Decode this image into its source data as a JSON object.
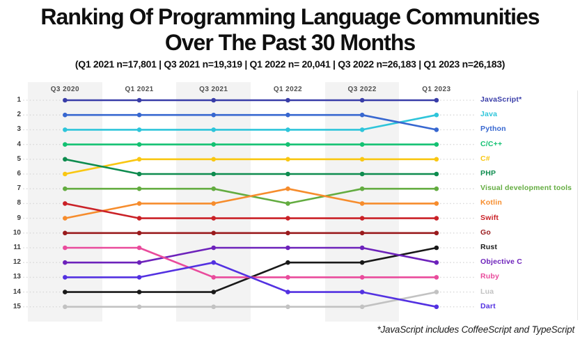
{
  "title": {
    "line1": "Ranking Of Programming Language Communities",
    "line2": "Over The Past 30 Months"
  },
  "subtitle": "(Q1 2021 n=17,801 | Q3 2021 n=19,319 | Q1 2022 n= 20,041 | Q3 2022 n=26,183 | Q1 2023 n=26,183)",
  "footnote": "*JavaScript includes CoffeeScript and TypeScript",
  "chart_data": {
    "type": "line",
    "subtype": "bump-ranking-chart",
    "x_labels": [
      "Q3 2020",
      "Q1 2021",
      "Q3 2021",
      "Q1 2022",
      "Q3 2022",
      "Q1 2023"
    ],
    "rank_labels": [
      "1",
      "2",
      "3",
      "4",
      "5",
      "6",
      "7",
      "8",
      "9",
      "10",
      "11",
      "12",
      "13",
      "14",
      "15"
    ],
    "rank_range": [
      1,
      15
    ],
    "legend_position": "right",
    "grid": {
      "alternating_column_bands": true,
      "first_band_shaded": true
    },
    "series": [
      {
        "name": "JavaScript*",
        "color": "#393da8",
        "ranks": [
          1,
          1,
          1,
          1,
          1,
          1
        ]
      },
      {
        "name": "Java",
        "color": "#2ec5da",
        "ranks": [
          3,
          3,
          3,
          3,
          3,
          2
        ]
      },
      {
        "name": "Python",
        "color": "#3767d0",
        "ranks": [
          2,
          2,
          2,
          2,
          2,
          3
        ]
      },
      {
        "name": "C/C++",
        "color": "#13c172",
        "ranks": [
          4,
          4,
          4,
          4,
          4,
          4
        ]
      },
      {
        "name": "C#",
        "color": "#f9c712",
        "ranks": [
          6,
          5,
          5,
          5,
          5,
          5
        ]
      },
      {
        "name": "PHP",
        "color": "#0e8c4f",
        "ranks": [
          5,
          6,
          6,
          6,
          6,
          6
        ]
      },
      {
        "name": "Visual development tools",
        "color": "#63ac40",
        "ranks": [
          7,
          7,
          7,
          8,
          7,
          7
        ]
      },
      {
        "name": "Kotlin",
        "color": "#f68c2c",
        "ranks": [
          9,
          8,
          8,
          7,
          8,
          8
        ]
      },
      {
        "name": "Swift",
        "color": "#ca2127",
        "ranks": [
          8,
          9,
          9,
          9,
          9,
          9
        ]
      },
      {
        "name": "Go",
        "color": "#9a1b1d",
        "ranks": [
          10,
          10,
          10,
          10,
          10,
          10
        ]
      },
      {
        "name": "Rust",
        "color": "#191919",
        "ranks": [
          14,
          14,
          14,
          12,
          12,
          11
        ]
      },
      {
        "name": "Objective C",
        "color": "#6d22bb",
        "ranks": [
          12,
          12,
          11,
          11,
          11,
          12
        ]
      },
      {
        "name": "Ruby",
        "color": "#e94b9c",
        "ranks": [
          11,
          11,
          13,
          13,
          13,
          13
        ]
      },
      {
        "name": "Lua",
        "color": "#c2c2c2",
        "ranks": [
          15,
          15,
          15,
          15,
          15,
          14
        ]
      },
      {
        "name": "Dart",
        "color": "#5331e1",
        "ranks": [
          13,
          13,
          12,
          14,
          14,
          15
        ]
      }
    ]
  },
  "colors": {
    "background": "#ffffff",
    "column_band": "#f3f3f3",
    "leader_dots": "#d8d8d8",
    "header_text": "#4f4f4f",
    "rank_text": "#3d3d3d"
  }
}
